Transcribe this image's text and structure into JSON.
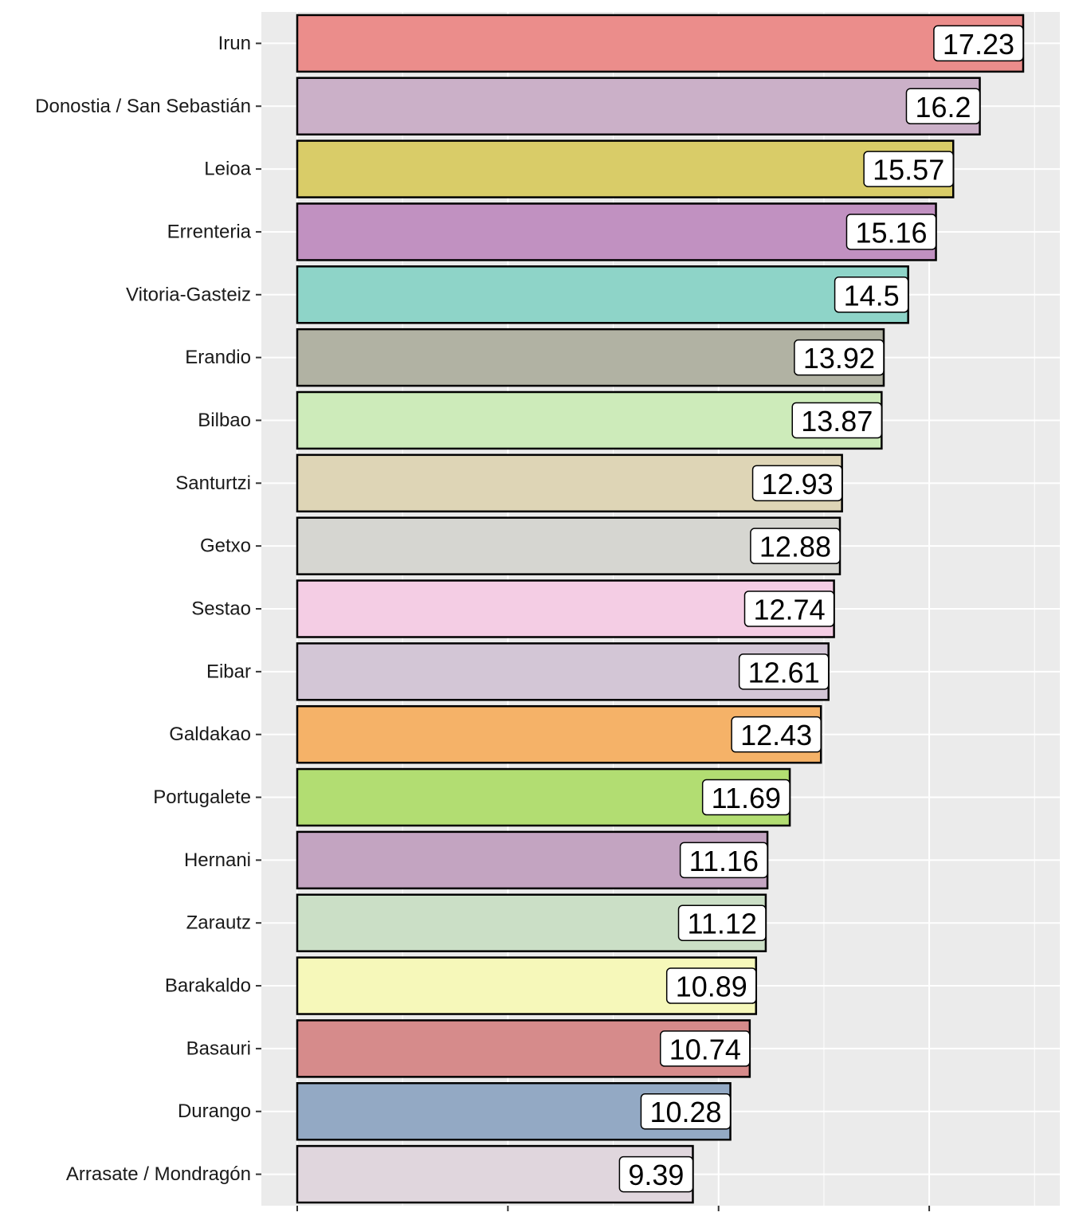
{
  "chart_data": {
    "type": "bar",
    "orientation": "horizontal",
    "title": "",
    "xlabel": "",
    "ylabel": "",
    "xlim": [
      0,
      17.5
    ],
    "x_axis_ticks_labelled": false,
    "grid": true,
    "legend": "none",
    "categories": [
      "Irun",
      "Donostia / San Sebastián",
      "Leioa",
      "Errenteria",
      "Vitoria-Gasteiz",
      "Erandio",
      "Bilbao",
      "Santurtzi",
      "Getxo",
      "Sestao",
      "Eibar",
      "Galdakao",
      "Portugalete",
      "Hernani",
      "Zarautz",
      "Barakaldo",
      "Basauri",
      "Durango",
      "Arrasate / Mondragón"
    ],
    "values": [
      17.23,
      16.2,
      15.57,
      15.16,
      14.5,
      13.92,
      13.87,
      12.93,
      12.88,
      12.74,
      12.61,
      12.43,
      11.69,
      11.16,
      11.12,
      10.89,
      10.74,
      10.28,
      9.39
    ],
    "value_labels": [
      "17.23",
      "16.2",
      "15.57",
      "15.16",
      "14.5",
      "13.92",
      "13.87",
      "12.93",
      "12.88",
      "12.74",
      "12.61",
      "12.43",
      "11.69",
      "11.16",
      "11.12",
      "10.89",
      "10.74",
      "10.28",
      "9.39"
    ],
    "colors": [
      "#EB8D8B",
      "#CBB0C8",
      "#D9CC68",
      "#C191C1",
      "#8ED4C8",
      "#B1B2A3",
      "#CDEBBA",
      "#DED5B6",
      "#D6D6D1",
      "#F4CDE4",
      "#D3C6D6",
      "#F5B268",
      "#B2DD72",
      "#C3A4C1",
      "#CBDFC6",
      "#F6F8BA",
      "#D68B8B",
      "#93A9C4",
      "#E0D6DD"
    ]
  }
}
